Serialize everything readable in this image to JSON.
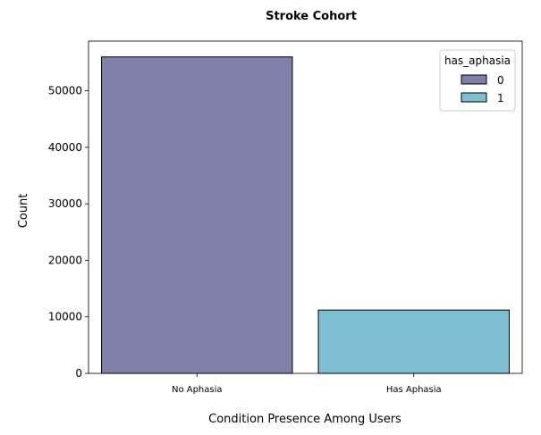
{
  "chart_data": {
    "type": "bar",
    "title": "Stroke Cohort",
    "xlabel": "Condition Presence Among Users",
    "ylabel": "Count",
    "categories": [
      "No Aphasia",
      "Has Aphasia"
    ],
    "values": [
      56000,
      11200
    ],
    "bar_colors": [
      "#8080aa",
      "#7fbfd4"
    ],
    "edge_color": "#000000",
    "ylim": [
      0,
      58800
    ],
    "yticks": [
      0,
      10000,
      20000,
      30000,
      40000,
      50000
    ],
    "grid": false,
    "legend": {
      "title": "has_aphasia",
      "placement": "top-right",
      "entries": [
        {
          "label": "0",
          "color": "#8080aa"
        },
        {
          "label": "1",
          "color": "#7fbfd4"
        }
      ]
    }
  }
}
